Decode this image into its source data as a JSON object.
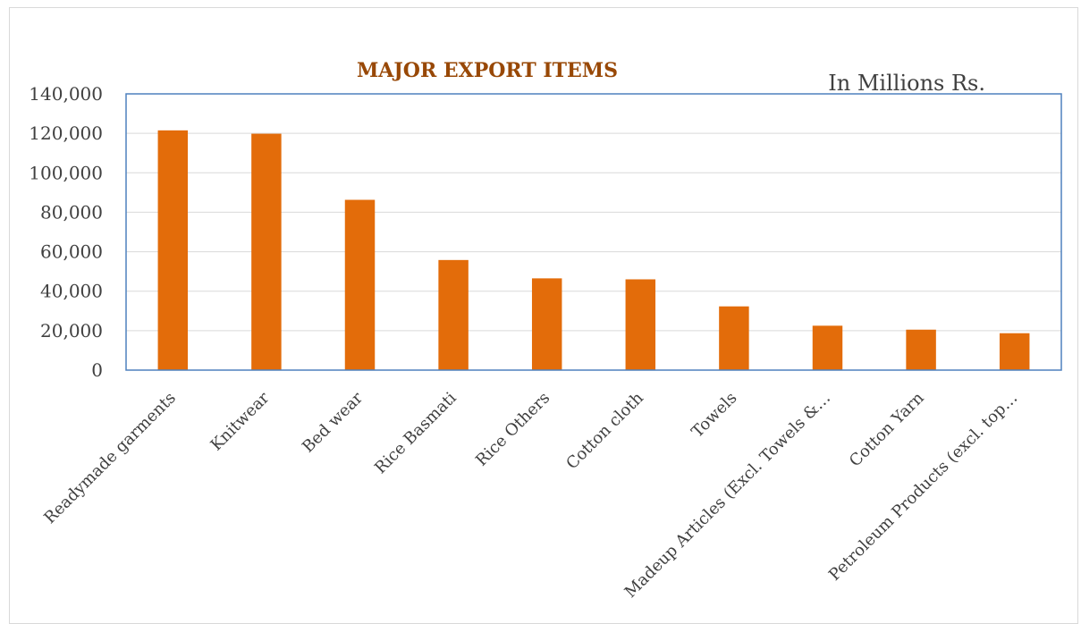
{
  "chart_data": {
    "type": "bar",
    "title": "MAJOR EXPORT ITEMS",
    "unit_note": "In Millions Rs.",
    "categories": [
      "Readymade garments",
      "Knitwear",
      "Bed wear",
      "Rice Basmati",
      "Rice Others",
      "Cotton cloth",
      "Towels",
      "Madeup Articles (Excl. Towels &…",
      "Cotton Yarn",
      "Petroleum Products (excl. top…"
    ],
    "values": [
      121500,
      119800,
      86300,
      55800,
      46500,
      46000,
      32300,
      22500,
      20500,
      18700
    ],
    "ylim": [
      0,
      140000
    ],
    "yticks": [
      0,
      20000,
      40000,
      60000,
      80000,
      100000,
      120000,
      140000
    ],
    "ytick_labels": [
      "0",
      "20,000",
      "40,000",
      "60,000",
      "80,000",
      "100,000",
      "120,000",
      "140,000"
    ],
    "grid": true,
    "colors": {
      "bar": "#E36C0A",
      "title": "#984806",
      "grid": "#d9d9d9",
      "plot_border": "#4f81bd",
      "text": "#404040"
    }
  }
}
